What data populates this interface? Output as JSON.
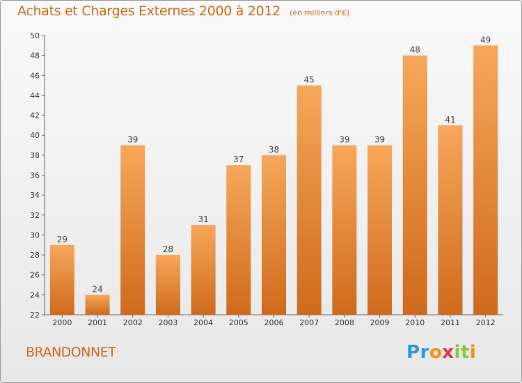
{
  "chart_data": {
    "type": "bar",
    "title": "Achats et Charges Externes 2000 à 2012",
    "subtitle": "(en milliers d'€)",
    "categories": [
      "2000",
      "2001",
      "2002",
      "2003",
      "2004",
      "2005",
      "2006",
      "2007",
      "2008",
      "2009",
      "2010",
      "2011",
      "2012"
    ],
    "values": [
      29,
      24,
      39,
      28,
      31,
      37,
      38,
      45,
      39,
      39,
      48,
      41,
      49
    ],
    "ylim": [
      22,
      50
    ],
    "yticks": [
      22,
      24,
      26,
      28,
      30,
      32,
      34,
      36,
      38,
      40,
      42,
      44,
      46,
      48,
      50
    ],
    "grid": false,
    "legend": "none",
    "colors": {
      "bar_light": "#f7a75a",
      "bar_dark": "#cf6a1c",
      "text_accent": "#d2691e"
    }
  },
  "footer": {
    "commune": "BRANDONNET",
    "logo_letters": [
      "P",
      "r",
      "o",
      "x",
      "i",
      "t",
      "i"
    ],
    "logo_colors": [
      "#2e9ad8",
      "#2e9ad8",
      "#f29400",
      "#e8304b",
      "#8dc63f",
      "#8dc63f",
      "#f29400"
    ]
  }
}
